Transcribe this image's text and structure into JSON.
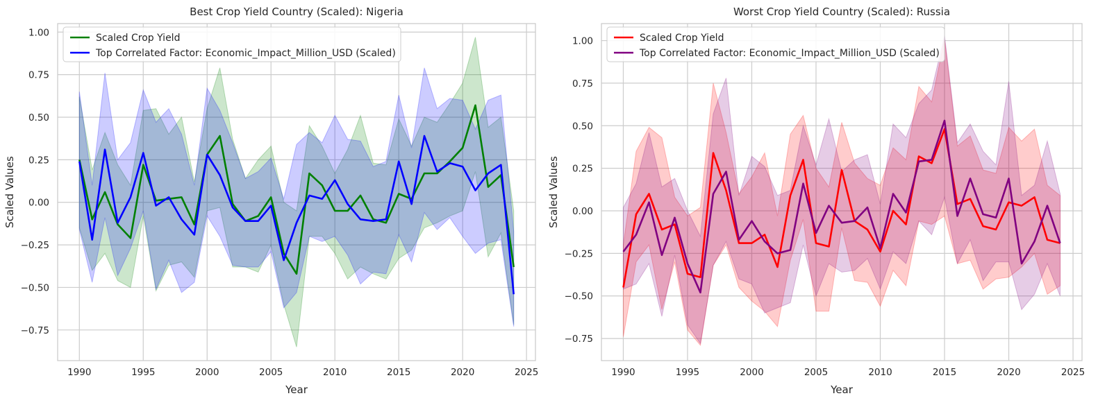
{
  "figure": {
    "background": "#ffffff",
    "grid_color": "#cccccc",
    "spine_color": "#cccccc"
  },
  "chart_data": [
    {
      "type": "line",
      "title": "Best Crop Yield Country (Scaled): Nigeria",
      "xlabel": "Year",
      "ylabel": "Scaled Values",
      "xlim": [
        1988.3,
        2025.7
      ],
      "ylim": [
        -0.93,
        1.05
      ],
      "xticks": [
        1990,
        1995,
        2000,
        2005,
        2010,
        2015,
        2020,
        2025
      ],
      "yticks": [
        -0.75,
        -0.5,
        -0.25,
        0.0,
        0.25,
        0.5,
        0.75,
        1.0
      ],
      "ytick_labels": [
        "−0.75",
        "−0.50",
        "−0.25",
        "0.00",
        "0.25",
        "0.50",
        "0.75",
        "1.00"
      ],
      "grid": true,
      "legend_position": "top-left",
      "x": [
        1990,
        1991,
        1992,
        1993,
        1994,
        1995,
        1996,
        1997,
        1998,
        1999,
        2000,
        2001,
        2002,
        2003,
        2004,
        2005,
        2006,
        2007,
        2008,
        2009,
        2010,
        2011,
        2012,
        2013,
        2014,
        2015,
        2016,
        2017,
        2018,
        2019,
        2020,
        2021,
        2022,
        2023,
        2024
      ],
      "series": [
        {
          "name": "Scaled Crop Yield",
          "color": "#008000",
          "band_color": "#008000",
          "values": [
            0.25,
            -0.1,
            0.06,
            -0.13,
            -0.21,
            0.22,
            0.01,
            0.02,
            0.03,
            -0.13,
            0.28,
            0.39,
            -0.01,
            -0.11,
            -0.08,
            0.03,
            -0.3,
            -0.42,
            0.17,
            0.1,
            -0.05,
            -0.05,
            0.04,
            -0.1,
            -0.12,
            0.05,
            0.02,
            0.17,
            0.17,
            0.24,
            0.32,
            0.57,
            0.09,
            0.16,
            -0.38
          ],
          "upper": [
            0.62,
            0.19,
            0.41,
            0.22,
            0.1,
            0.54,
            0.55,
            0.4,
            0.5,
            0.12,
            0.55,
            0.79,
            0.37,
            0.14,
            0.25,
            0.33,
            0.0,
            -0.05,
            0.45,
            0.33,
            0.17,
            0.31,
            0.51,
            0.23,
            0.22,
            0.49,
            0.33,
            0.5,
            0.47,
            0.58,
            0.7,
            0.97,
            0.44,
            0.5,
            -0.05
          ],
          "lower": [
            -0.15,
            -0.4,
            -0.3,
            -0.46,
            -0.5,
            -0.08,
            -0.52,
            -0.37,
            -0.35,
            -0.44,
            -0.05,
            -0.03,
            -0.38,
            -0.38,
            -0.41,
            -0.25,
            -0.6,
            -0.85,
            -0.2,
            -0.2,
            -0.3,
            -0.45,
            -0.38,
            -0.42,
            -0.45,
            -0.33,
            -0.28,
            -0.15,
            -0.12,
            -0.08,
            -0.05,
            0.18,
            -0.32,
            -0.18,
            -0.72
          ]
        },
        {
          "name": "Top Correlated Factor: Economic_Impact_Million_USD (Scaled)",
          "color": "#0000ff",
          "band_color": "#0000ff",
          "values": [
            0.24,
            -0.22,
            0.31,
            -0.12,
            0.03,
            0.29,
            -0.02,
            0.03,
            -0.1,
            -0.19,
            0.28,
            0.16,
            -0.03,
            -0.11,
            -0.11,
            -0.02,
            -0.34,
            -0.12,
            0.04,
            0.02,
            0.13,
            -0.01,
            -0.1,
            -0.11,
            -0.1,
            0.24,
            -0.01,
            0.39,
            0.18,
            0.23,
            0.21,
            0.07,
            0.17,
            0.22,
            -0.54
          ],
          "upper": [
            0.65,
            0.1,
            0.76,
            0.25,
            0.35,
            0.66,
            0.47,
            0.55,
            0.4,
            0.1,
            0.67,
            0.54,
            0.35,
            0.14,
            0.18,
            0.26,
            0.02,
            0.34,
            0.41,
            0.35,
            0.51,
            0.37,
            0.36,
            0.21,
            0.24,
            0.63,
            0.32,
            0.79,
            0.55,
            0.61,
            0.6,
            0.43,
            0.6,
            0.63,
            -0.17
          ],
          "lower": [
            -0.16,
            -0.47,
            -0.09,
            -0.43,
            -0.27,
            -0.05,
            -0.51,
            -0.34,
            -0.53,
            -0.47,
            -0.08,
            -0.2,
            -0.37,
            -0.38,
            -0.38,
            -0.29,
            -0.62,
            -0.53,
            -0.2,
            -0.23,
            -0.2,
            -0.31,
            -0.48,
            -0.41,
            -0.42,
            -0.19,
            -0.35,
            -0.06,
            -0.16,
            -0.09,
            -0.2,
            -0.3,
            -0.24,
            -0.22,
            -0.73
          ]
        }
      ]
    },
    {
      "type": "line",
      "title": "Worst Crop Yield Country (Scaled): Russia",
      "xlabel": "Year",
      "ylabel": "Scaled Values",
      "xlim": [
        1988.3,
        2025.7
      ],
      "ylim": [
        -0.88,
        1.1
      ],
      "xticks": [
        1990,
        1995,
        2000,
        2005,
        2010,
        2015,
        2020,
        2025
      ],
      "yticks": [
        -0.75,
        -0.5,
        -0.25,
        0.0,
        0.25,
        0.5,
        0.75,
        1.0
      ],
      "ytick_labels": [
        "−0.75",
        "−0.50",
        "−0.25",
        "0.00",
        "0.25",
        "0.50",
        "0.75",
        "1.00"
      ],
      "grid": true,
      "legend_position": "top-left",
      "x": [
        1990,
        1991,
        1992,
        1993,
        1994,
        1995,
        1996,
        1997,
        1998,
        1999,
        2000,
        2001,
        2002,
        2003,
        2004,
        2005,
        2006,
        2007,
        2008,
        2009,
        2010,
        2011,
        2012,
        2013,
        2014,
        2015,
        2016,
        2017,
        2018,
        2019,
        2020,
        2021,
        2022,
        2023,
        2024
      ],
      "series": [
        {
          "name": "Scaled Crop Yield",
          "color": "#ff0000",
          "band_color": "#ff0000",
          "values": [
            -0.45,
            -0.02,
            0.1,
            -0.11,
            -0.08,
            -0.37,
            -0.39,
            0.34,
            0.12,
            -0.19,
            -0.19,
            -0.14,
            -0.33,
            0.09,
            0.3,
            -0.19,
            -0.21,
            0.24,
            -0.06,
            -0.11,
            -0.24,
            0.0,
            -0.08,
            0.32,
            0.28,
            0.48,
            0.04,
            0.07,
            -0.09,
            -0.11,
            0.05,
            0.03,
            0.08,
            -0.17,
            -0.19
          ],
          "upper": [
            -0.2,
            0.35,
            0.49,
            0.43,
            0.08,
            -0.03,
            0.02,
            0.75,
            0.46,
            0.1,
            0.2,
            0.34,
            -0.03,
            0.45,
            0.56,
            0.25,
            0.14,
            0.52,
            0.28,
            0.19,
            0.15,
            0.37,
            0.3,
            0.73,
            0.64,
            1.01,
            0.38,
            0.44,
            0.24,
            0.22,
            0.49,
            0.41,
            0.48,
            0.15,
            0.09
          ],
          "lower": [
            -0.74,
            -0.3,
            -0.2,
            -0.58,
            -0.3,
            -0.7,
            -0.79,
            -0.32,
            -0.2,
            -0.45,
            -0.53,
            -0.59,
            -0.68,
            -0.29,
            -0.05,
            -0.59,
            -0.59,
            -0.1,
            -0.41,
            -0.42,
            -0.56,
            -0.35,
            -0.44,
            -0.06,
            -0.08,
            -0.03,
            -0.31,
            -0.29,
            -0.46,
            -0.4,
            -0.39,
            -0.33,
            -0.25,
            -0.49,
            -0.44
          ]
        },
        {
          "name": "Top Correlated Factor: Economic_Impact_Million_USD (Scaled)",
          "color": "#800080",
          "band_color": "#800080",
          "values": [
            -0.24,
            -0.14,
            0.05,
            -0.26,
            -0.04,
            -0.31,
            -0.48,
            0.1,
            0.23,
            -0.17,
            -0.06,
            -0.18,
            -0.25,
            -0.23,
            0.16,
            -0.13,
            0.03,
            -0.07,
            -0.06,
            0.02,
            -0.22,
            0.1,
            -0.01,
            0.29,
            0.3,
            0.53,
            -0.03,
            0.19,
            -0.02,
            -0.04,
            0.19,
            -0.31,
            -0.18,
            0.03,
            -0.19
          ],
          "upper": [
            0.02,
            0.16,
            0.46,
            0.14,
            0.19,
            0.0,
            -0.15,
            0.57,
            0.78,
            0.09,
            0.32,
            0.26,
            0.09,
            0.12,
            0.5,
            0.27,
            0.54,
            0.23,
            0.3,
            0.33,
            0.04,
            0.51,
            0.43,
            0.63,
            0.71,
            1.03,
            0.4,
            0.51,
            0.35,
            0.27,
            0.76,
            0.09,
            0.15,
            0.41,
            0.1
          ],
          "lower": [
            -0.46,
            -0.43,
            -0.31,
            -0.62,
            -0.26,
            -0.67,
            -0.78,
            -0.32,
            -0.18,
            -0.4,
            -0.43,
            -0.6,
            -0.57,
            -0.54,
            -0.2,
            -0.5,
            -0.31,
            -0.36,
            -0.35,
            -0.28,
            -0.46,
            -0.24,
            -0.31,
            -0.06,
            -0.14,
            0.08,
            -0.31,
            -0.17,
            -0.41,
            -0.3,
            -0.3,
            -0.58,
            -0.49,
            -0.31,
            -0.5
          ]
        }
      ]
    }
  ]
}
